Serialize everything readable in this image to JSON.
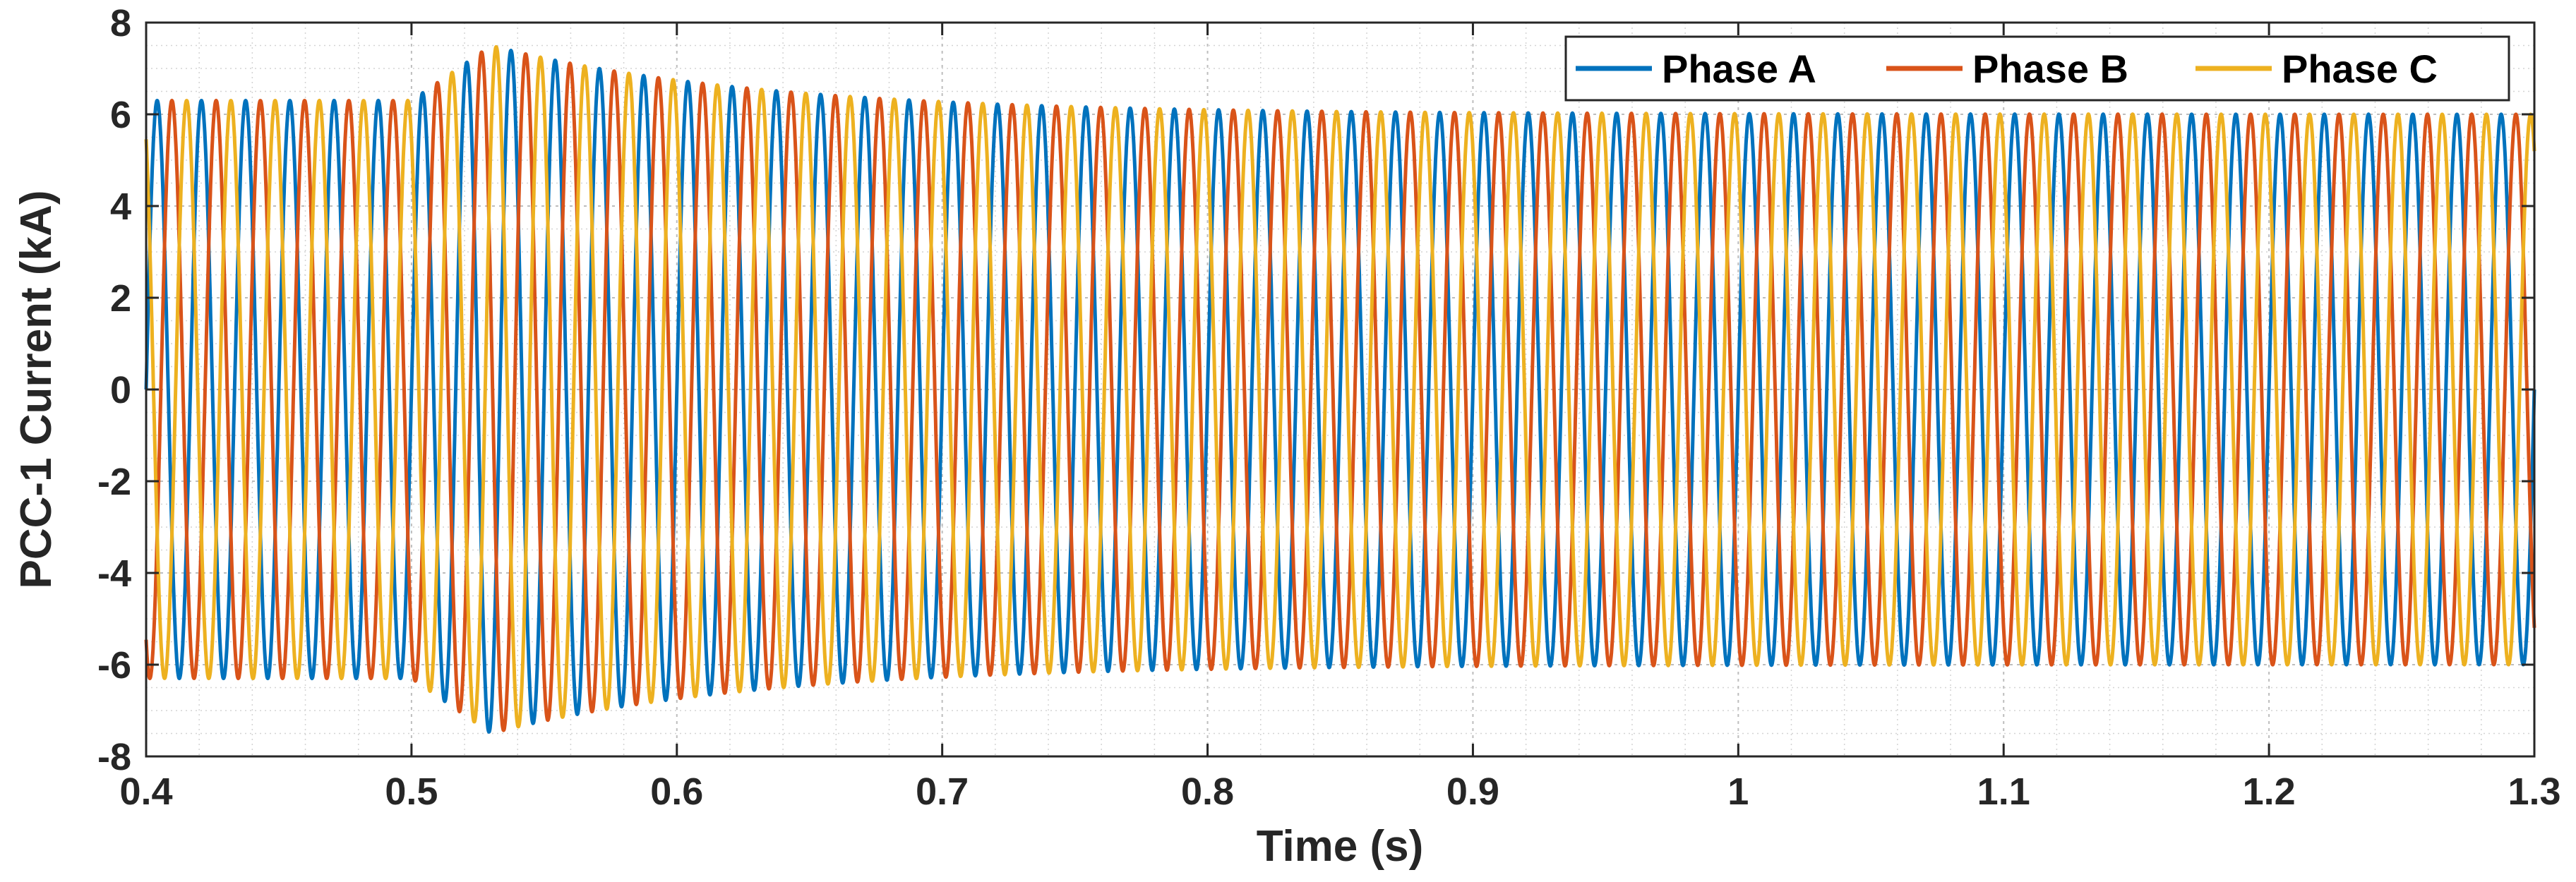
{
  "chart_data": {
    "type": "line",
    "title": "",
    "xlabel": "Time (s)",
    "ylabel": "PCC-1 Current (kA)",
    "xlim": [
      0.4,
      1.3
    ],
    "ylim": [
      -8,
      8
    ],
    "xticks": [
      "0.4",
      "0.5",
      "0.6",
      "0.7",
      "0.8",
      "0.9",
      "1",
      "1.1",
      "1.2",
      "1.3"
    ],
    "yticks": [
      "-8",
      "-6",
      "-4",
      "-2",
      "0",
      "2",
      "4",
      "6",
      "8"
    ],
    "grid": true,
    "minor_grid": true,
    "legend_position": "top-right",
    "legend_orientation": "horizontal",
    "signal": {
      "frequency_hz": 60,
      "event_time_s": 0.5,
      "amplitude_before_kA": 6.3,
      "amplitude_peak_kA": 7.5,
      "amplitude_peak_time_s": 0.53,
      "amplitude_steady_kA": 6.0,
      "decay_time_constant_s": 0.1
    },
    "series": [
      {
        "name": "Phase A",
        "color": "#0072BD",
        "phase_deg": 0
      },
      {
        "name": "Phase B",
        "color": "#D95319",
        "phase_deg": -120
      },
      {
        "name": "Phase C",
        "color": "#EDB120",
        "phase_deg": 120
      }
    ]
  }
}
